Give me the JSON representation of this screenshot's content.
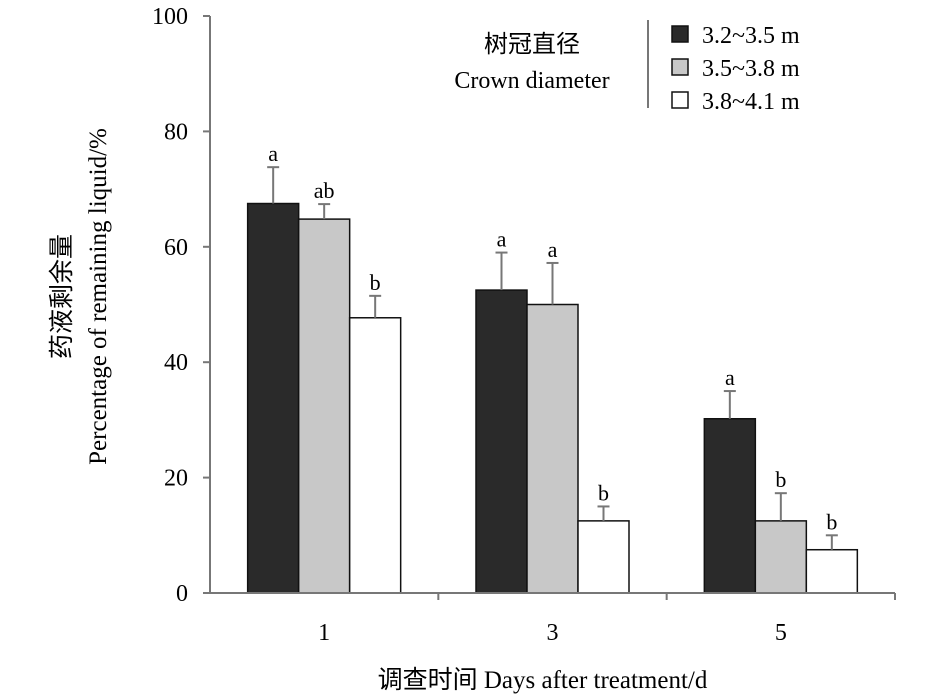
{
  "chart_data": {
    "type": "bar",
    "xlabel": "调查时间 Days after treatment/d",
    "ylabel_cn": "药液剩余量",
    "ylabel_en": "Percentage of remaining liquid/%",
    "ylim": [
      0,
      100
    ],
    "yticks": [
      0,
      20,
      40,
      60,
      80,
      100
    ],
    "categories": [
      "1",
      "3",
      "5"
    ],
    "legend": {
      "title_cn": "树冠直径",
      "title_en": "Crown diameter",
      "position": "top-right"
    },
    "series": [
      {
        "name": "3.2~3.5 m",
        "color": "#2a2a2a",
        "values": [
          67.5,
          52.5,
          30.2
        ],
        "errors": [
          6.3,
          6.5,
          4.8
        ],
        "sig": [
          "a",
          "a",
          "a"
        ]
      },
      {
        "name": "3.5~3.8 m",
        "color": "#c8c8c8",
        "values": [
          64.8,
          50.0,
          12.5
        ],
        "errors": [
          2.6,
          7.2,
          4.8
        ],
        "sig": [
          "ab",
          "a",
          "b"
        ]
      },
      {
        "name": "3.8~4.1 m",
        "color": "#ffffff",
        "values": [
          47.7,
          12.5,
          7.5
        ],
        "errors": [
          3.8,
          2.5,
          2.5
        ],
        "sig": [
          "b",
          "b",
          "b"
        ]
      }
    ]
  }
}
